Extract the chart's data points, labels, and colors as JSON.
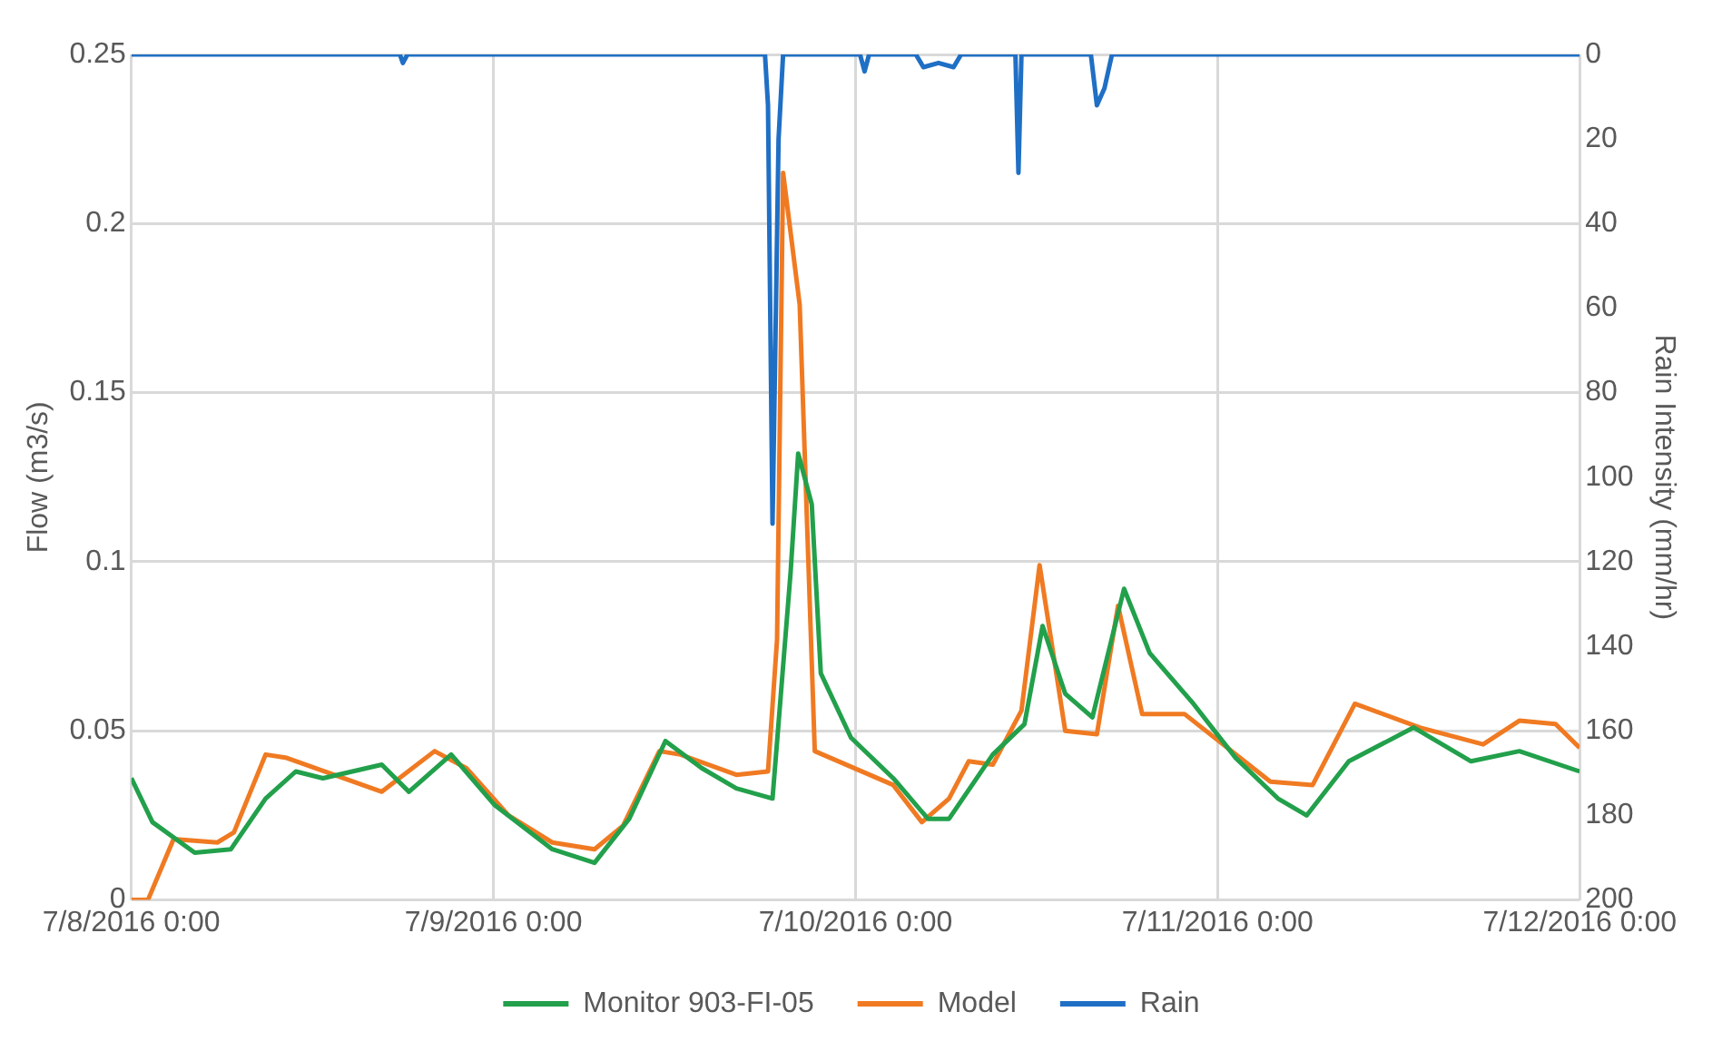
{
  "chart_data": {
    "type": "line",
    "xlabel": null,
    "ylabel": "Flow (m3/s)",
    "y2label": "Rain Intensity (mm/hr)",
    "xlim": [
      "2016-07-08T00:00",
      "2016-07-12T00:00"
    ],
    "xticks": [
      {
        "value": "2016-07-08T00:00",
        "label": "7/8/2016 0:00"
      },
      {
        "value": "2016-07-09T00:00",
        "label": "7/9/2016 0:00"
      },
      {
        "value": "2016-07-10T00:00",
        "label": "7/10/2016 0:00"
      },
      {
        "value": "2016-07-11T00:00",
        "label": "7/11/2016 0:00"
      },
      {
        "value": "2016-07-12T00:00",
        "label": "7/12/2016 0:00"
      }
    ],
    "ylim": [
      0,
      0.25
    ],
    "yticks": [
      0,
      0.05,
      0.1,
      0.15,
      0.2,
      0.25
    ],
    "y2lim": [
      200,
      0
    ],
    "y2ticks": [
      0,
      20,
      40,
      60,
      80,
      100,
      120,
      140,
      160,
      180,
      200
    ],
    "grid": true,
    "legend": "bottom",
    "marker": "none",
    "line_style": "solid",
    "series": [
      {
        "name": "Monitor 903-FI-05",
        "color": "#22a04b",
        "x": [
          "2016-07-08T00:00",
          "2016-07-08T01:24",
          "2016-07-08T04:12",
          "2016-07-08T06:36",
          "2016-07-08T08:54",
          "2016-07-08T10:54",
          "2016-07-08T12:42",
          "2016-07-08T16:36",
          "2016-07-08T18:24",
          "2016-07-08T21:12",
          "2016-07-09T00:06",
          "2016-07-09T03:54",
          "2016-07-09T06:42",
          "2016-07-09T09:00",
          "2016-07-09T11:24",
          "2016-07-09T13:48",
          "2016-07-09T16:06",
          "2016-07-09T18:30",
          "2016-07-09T19:42",
          "2016-07-09T20:12",
          "2016-07-09T21:06",
          "2016-07-09T21:42",
          "2016-07-09T23:42",
          "2016-07-10T02:30",
          "2016-07-10T04:48",
          "2016-07-10T06:12",
          "2016-07-10T09:06",
          "2016-07-10T11:12",
          "2016-07-10T12:24",
          "2016-07-10T13:54",
          "2016-07-10T15:42",
          "2016-07-10T17:48",
          "2016-07-10T19:30",
          "2016-07-10T22:24",
          "2016-07-11T01:12",
          "2016-07-11T04:00",
          "2016-07-11T05:54",
          "2016-07-11T08:42",
          "2016-07-11T13:00",
          "2016-07-11T16:48",
          "2016-07-11T20:00",
          "2016-07-12T00:00"
        ],
        "values": [
          0.036,
          0.023,
          0.014,
          0.015,
          0.03,
          0.038,
          0.036,
          0.04,
          0.032,
          0.043,
          0.028,
          0.015,
          0.011,
          0.024,
          0.047,
          0.039,
          0.033,
          0.03,
          0.097,
          0.132,
          0.117,
          0.067,
          0.048,
          0.036,
          0.024,
          0.024,
          0.043,
          0.052,
          0.081,
          0.061,
          0.054,
          0.092,
          0.073,
          0.058,
          0.042,
          0.03,
          0.025,
          0.041,
          0.051,
          0.041,
          0.044,
          0.038
        ]
      },
      {
        "name": "Model",
        "color": "#f07a22",
        "x": [
          "2016-07-08T00:00",
          "2016-07-08T01:06",
          "2016-07-08T02:48",
          "2016-07-08T05:42",
          "2016-07-08T06:48",
          "2016-07-08T08:54",
          "2016-07-08T10:18",
          "2016-07-08T16:36",
          "2016-07-08T20:06",
          "2016-07-08T22:12",
          "2016-07-09T01:00",
          "2016-07-09T03:54",
          "2016-07-09T06:42",
          "2016-07-09T08:36",
          "2016-07-09T11:00",
          "2016-07-09T12:24",
          "2016-07-09T16:06",
          "2016-07-09T18:12",
          "2016-07-09T18:48",
          "2016-07-09T19:12",
          "2016-07-09T20:18",
          "2016-07-09T21:18",
          "2016-07-10T02:30",
          "2016-07-10T04:24",
          "2016-07-10T06:12",
          "2016-07-10T07:30",
          "2016-07-10T09:06",
          "2016-07-10T11:00",
          "2016-07-10T12:12",
          "2016-07-10T13:54",
          "2016-07-10T16:00",
          "2016-07-10T17:24",
          "2016-07-10T19:00",
          "2016-07-10T21:48",
          "2016-07-11T03:30",
          "2016-07-11T06:18",
          "2016-07-11T09:06",
          "2016-07-11T13:24",
          "2016-07-11T17:36",
          "2016-07-11T20:00",
          "2016-07-11T22:24",
          "2016-07-12T00:00"
        ],
        "values": [
          0,
          0,
          0.018,
          0.017,
          0.02,
          0.043,
          0.042,
          0.032,
          0.044,
          0.039,
          0.025,
          0.017,
          0.015,
          0.022,
          0.044,
          0.043,
          0.037,
          0.038,
          0.077,
          0.215,
          0.176,
          0.044,
          0.034,
          0.023,
          0.03,
          0.041,
          0.04,
          0.056,
          0.099,
          0.05,
          0.049,
          0.087,
          0.055,
          0.055,
          0.035,
          0.034,
          0.058,
          0.051,
          0.046,
          0.053,
          0.052,
          0.045
        ]
      },
      {
        "name": "Rain",
        "color": "#1f6fc5",
        "axis": "y2",
        "x": [
          "2016-07-08T00:00",
          "2016-07-08T17:48",
          "2016-07-08T18:00",
          "2016-07-08T18:18",
          "2016-07-09T18:00",
          "2016-07-09T18:12",
          "2016-07-09T18:30",
          "2016-07-09T18:54",
          "2016-07-09T19:12",
          "2016-07-10T00:18",
          "2016-07-10T00:36",
          "2016-07-10T00:54",
          "2016-07-10T04:00",
          "2016-07-10T04:30",
          "2016-07-10T05:30",
          "2016-07-10T06:30",
          "2016-07-10T07:00",
          "2016-07-10T10:36",
          "2016-07-10T10:48",
          "2016-07-10T11:00",
          "2016-07-10T15:36",
          "2016-07-10T16:00",
          "2016-07-10T16:30",
          "2016-07-10T17:00",
          "2016-07-12T00:00"
        ],
        "values": [
          0,
          0,
          2,
          0,
          0,
          12,
          111,
          20,
          0,
          0,
          4,
          0,
          0,
          3,
          2,
          3,
          0,
          0,
          28,
          0,
          0,
          12,
          8,
          0,
          0
        ]
      }
    ]
  }
}
